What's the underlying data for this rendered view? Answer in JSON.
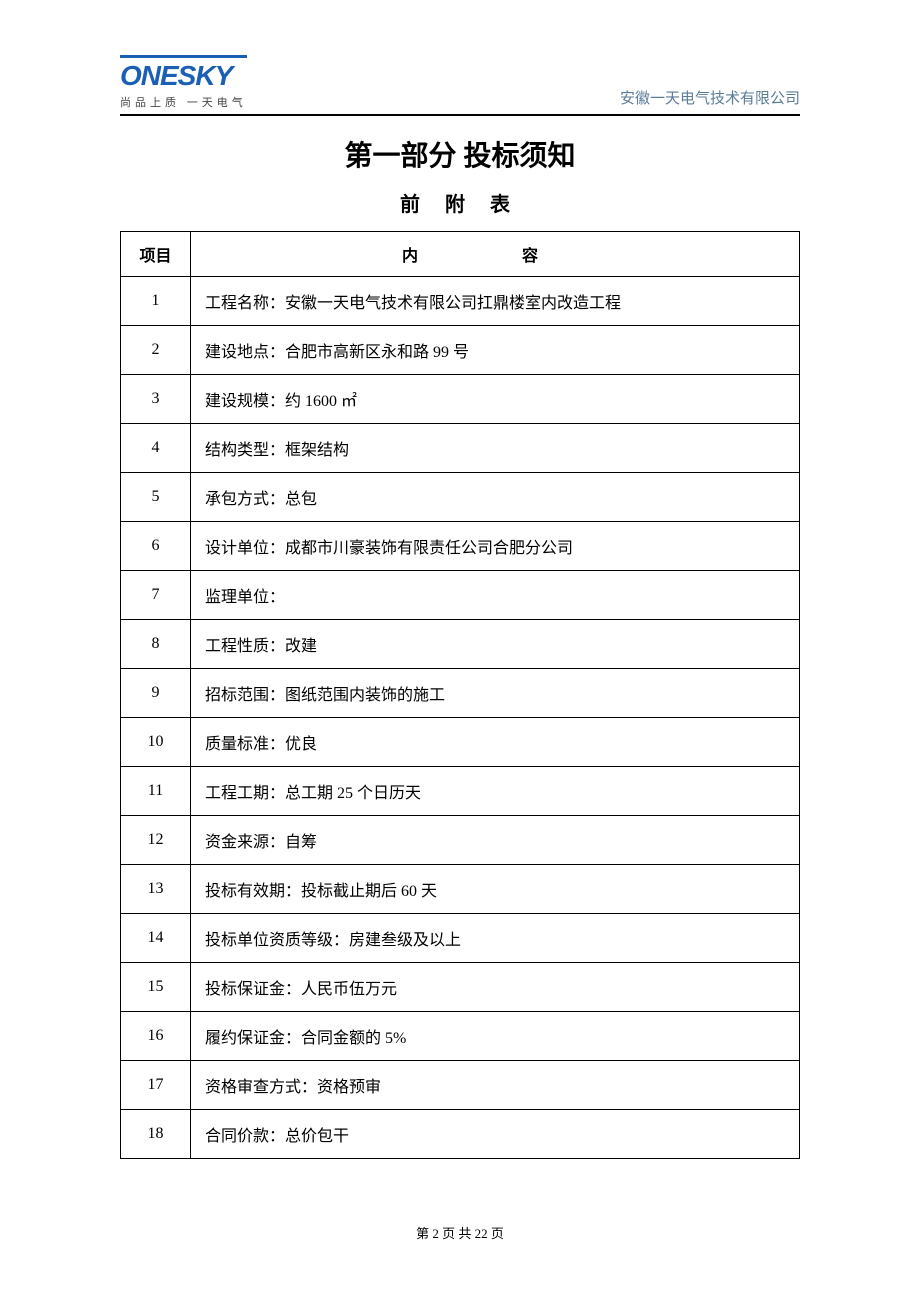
{
  "header": {
    "logo_text": "ONESKY",
    "logo_tagline": "尚品上质  一天电气",
    "company_name": "安徽一天电气技术有限公司",
    "logo_color": "#1a5fb4",
    "company_name_color": "#5b7c99"
  },
  "section_title": "第一部分 投标须知",
  "subtitle": "前 附 表",
  "table": {
    "columns": [
      "项目",
      "内    容"
    ],
    "col_widths": [
      "70px",
      "auto"
    ],
    "rows": [
      {
        "num": "1",
        "content": "工程名称：安徽一天电气技术有限公司扛鼎楼室内改造工程"
      },
      {
        "num": "2",
        "content": "建设地点：合肥市高新区永和路 99 号"
      },
      {
        "num": "3",
        "content": "建设规模：约 1600 ㎡"
      },
      {
        "num": "4",
        "content": "结构类型：框架结构"
      },
      {
        "num": "5",
        "content": "承包方式：总包"
      },
      {
        "num": "6",
        "content": "设计单位：成都市川豪装饰有限责任公司合肥分公司"
      },
      {
        "num": "7",
        "content": "监理单位："
      },
      {
        "num": "8",
        "content": "工程性质：改建"
      },
      {
        "num": "9",
        "content": "招标范围：图纸范围内装饰的施工"
      },
      {
        "num": "10",
        "content": "质量标准：优良"
      },
      {
        "num": "11",
        "content": "工程工期：总工期 25 个日历天"
      },
      {
        "num": "12",
        "content": "资金来源：自筹"
      },
      {
        "num": "13",
        "content": "投标有效期：投标截止期后 60 天"
      },
      {
        "num": "14",
        "content": "投标单位资质等级：房建叁级及以上"
      },
      {
        "num": "15",
        "content": "投标保证金：人民币伍万元"
      },
      {
        "num": "16",
        "content": "履约保证金：合同金额的 5%"
      },
      {
        "num": "17",
        "content": "资格审查方式：资格预审"
      },
      {
        "num": "18",
        "content": "合同价款：总价包干"
      }
    ]
  },
  "footer": "第 2 页 共 22 页",
  "styling": {
    "page_bg": "#ffffff",
    "border_color": "#000000",
    "title_fontsize": 28,
    "subtitle_fontsize": 20,
    "cell_fontsize": 16,
    "footer_fontsize": 13
  }
}
